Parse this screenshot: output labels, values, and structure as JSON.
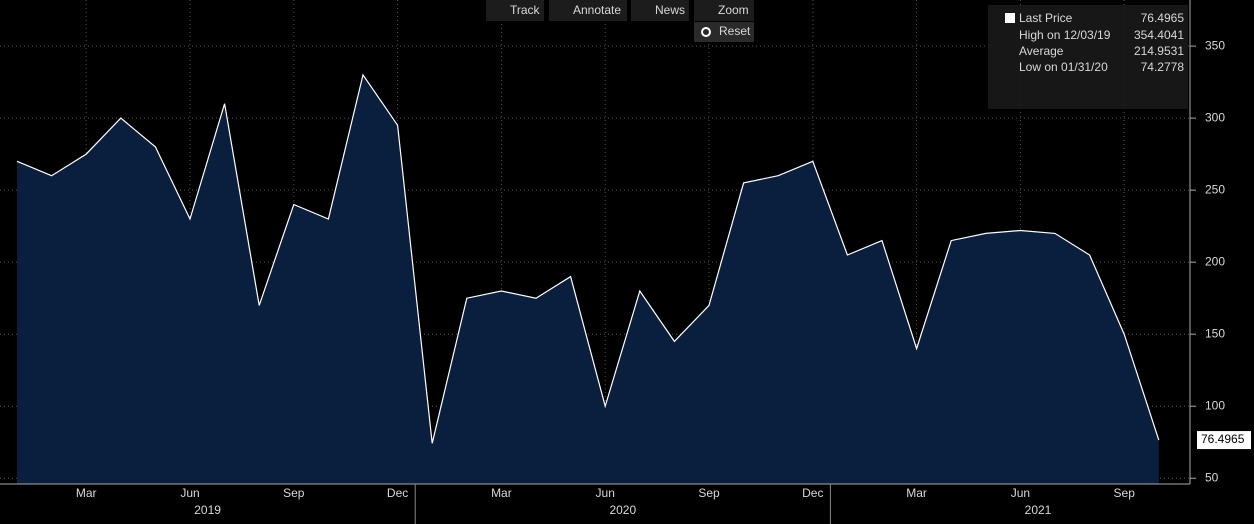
{
  "chart_data": {
    "type": "area",
    "toolbar": [
      "Track",
      "Annotate",
      "News",
      "Zoom"
    ],
    "reset_button": "Reset",
    "x": [
      "2019-01",
      "2019-02",
      "2019-03",
      "2019-04",
      "2019-05",
      "2019-06",
      "2019-07",
      "2019-08",
      "2019-09",
      "2019-10",
      "2019-11",
      "2019-12",
      "2020-01",
      "2020-02",
      "2020-03",
      "2020-04",
      "2020-05",
      "2020-06",
      "2020-07",
      "2020-08",
      "2020-09",
      "2020-10",
      "2020-11",
      "2020-12",
      "2021-01",
      "2021-02",
      "2021-03",
      "2021-04",
      "2021-05",
      "2021-06",
      "2021-07",
      "2021-08",
      "2021-09",
      "2021-10"
    ],
    "series": [
      {
        "name": "Last Price",
        "color": "#ffffff",
        "fill": "#0a1f3d",
        "values": [
          270,
          260,
          275,
          300,
          280,
          230,
          310,
          170,
          240,
          230,
          330,
          295,
          74.2778,
          175,
          180,
          175,
          190,
          100,
          180,
          145,
          170,
          255,
          260,
          270,
          205,
          215,
          140,
          215,
          220,
          222,
          220,
          205,
          150,
          76.4965
        ]
      }
    ],
    "last_value": 76.4965,
    "legend_stats": [
      {
        "label": "High on 12/03/19",
        "value": 354.4041
      },
      {
        "label": "Average",
        "value": 214.9531
      },
      {
        "label": "Low on 01/31/20",
        "value": 74.2778
      }
    ],
    "xticks": [
      {
        "value": "2019-03",
        "label": "Mar"
      },
      {
        "value": "2019-06",
        "label": "Jun"
      },
      {
        "value": "2019-09",
        "label": "Sep"
      },
      {
        "value": "2019-12",
        "label": "Dec"
      },
      {
        "value": "2020-03",
        "label": "Mar"
      },
      {
        "value": "2020-06",
        "label": "Jun"
      },
      {
        "value": "2020-09",
        "label": "Sep"
      },
      {
        "value": "2020-12",
        "label": "Dec"
      },
      {
        "value": "2021-03",
        "label": "Mar"
      },
      {
        "value": "2021-06",
        "label": "Jun"
      },
      {
        "value": "2021-09",
        "label": "Sep"
      }
    ],
    "years": [
      2019,
      2020,
      2021
    ],
    "ylim": [
      46,
      382
    ],
    "yticks": [
      50,
      100,
      150,
      200,
      250,
      300,
      350
    ],
    "grid": true
  }
}
